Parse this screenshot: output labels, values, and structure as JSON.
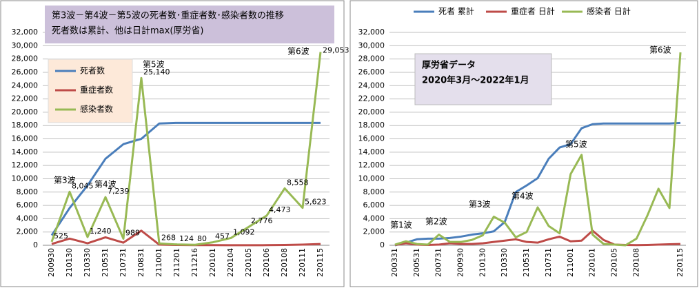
{
  "chart_data": [
    {
      "type": "line",
      "title": [
        "第3波－第4波－第5波の死者数･重症者数･感染者数の推移",
        "死者数は累計、他は日計max(厚労省)"
      ],
      "categories": [
        "200930",
        "210130",
        "210330",
        "210531",
        "210731",
        "210831",
        "211001",
        "211201",
        "211216",
        "220101",
        "220104",
        "220105",
        "220106",
        "220108",
        "220111",
        "220115"
      ],
      "series": [
        {
          "name": "死者数",
          "color": "#4a7ebb",
          "values": [
            1500,
            5600,
            9000,
            13000,
            15200,
            16000,
            18300,
            18400,
            18400,
            18400,
            18400,
            18400,
            18400,
            18400,
            18400,
            18400
          ]
        },
        {
          "name": "重症者数",
          "color": "#be4b48",
          "values": [
            200,
            1000,
            300,
            1200,
            400,
            2200,
            100,
            50,
            30,
            20,
            10,
            10,
            20,
            50,
            100,
            200
          ]
        },
        {
          "name": "感染者数",
          "color": "#98b954",
          "values": [
            525,
            8045,
            1240,
            7239,
            989,
            25140,
            268,
            124,
            80,
            457,
            1092,
            2776,
            4473,
            8558,
            5623,
            29053
          ],
          "value_labels": [
            "525",
            "8,045",
            "1,240",
            "7,239",
            "989",
            "25,140",
            "268",
            "124",
            "80",
            "457",
            "1,092",
            "2,776",
            "4,473",
            "8,558",
            "5,623",
            "29,053"
          ]
        }
      ],
      "annotations": [
        "第3波",
        "第4波",
        "第5波",
        "第6波"
      ],
      "ylim": [
        0,
        32000
      ],
      "yticks": [
        0,
        {
          "value": 2000,
          "label": "2,000"
        },
        {
          "value": 4000,
          "label": "4,000"
        },
        {
          "value": 6000,
          "label": "6,000"
        },
        {
          "value": 8000,
          "label": "8,000"
        },
        {
          "value": 10000,
          "label": "10,000"
        },
        {
          "value": 12000,
          "label": "12,000"
        },
        {
          "value": 14000,
          "label": "14,000"
        },
        {
          "value": 16000,
          "label": "16,000"
        },
        {
          "value": 18000,
          "label": "18,000"
        },
        {
          "value": 20000,
          "label": "20,000"
        },
        {
          "value": 22000,
          "label": "22,000"
        },
        {
          "value": 24000,
          "label": "24,000"
        },
        {
          "value": 26000,
          "label": "26,000"
        },
        {
          "value": 28000,
          "label": "28,000"
        },
        {
          "value": 30000,
          "label": "30,000"
        },
        {
          "value": 32000,
          "label": "32,000"
        }
      ],
      "grid": true,
      "legend": "upper left"
    },
    {
      "type": "line",
      "categories": [
        "200331",
        null,
        "200531",
        null,
        "200731",
        null,
        "200930",
        null,
        "210130",
        null,
        "210330",
        null,
        "210531",
        null,
        "210731",
        null,
        "211001",
        null,
        "220101",
        null,
        "220105",
        null,
        "220108",
        null,
        null,
        null,
        "220115"
      ],
      "series": [
        {
          "name": "死者 累計",
          "color": "#4a7ebb",
          "values": [
            0,
            400,
            900,
            1000,
            1000,
            1100,
            1300,
            1600,
            1800,
            2100,
            3500,
            8000,
            9000,
            10100,
            13000,
            14700,
            15200,
            17600,
            18200,
            18300,
            18300,
            18300,
            18300,
            18300,
            18300,
            18300,
            18400
          ]
        },
        {
          "name": "重症者 日計",
          "color": "#be4b48",
          "values": [
            50,
            300,
            100,
            50,
            100,
            300,
            200,
            200,
            300,
            500,
            700,
            900,
            500,
            400,
            900,
            1300,
            600,
            700,
            2200,
            800,
            100,
            50,
            30,
            50,
            100,
            150,
            200
          ]
        },
        {
          "name": "感染者 日計",
          "color": "#98b954",
          "values": [
            100,
            600,
            200,
            100,
            1600,
            500,
            500,
            800,
            1500,
            4300,
            3400,
            1200,
            2000,
            5700,
            2900,
            1800,
            10700,
            13600,
            1600,
            200,
            100,
            0,
            1000,
            4500,
            8500,
            5600,
            29000
          ]
        }
      ],
      "note": [
        "厚労省データ",
        "2020年3月～2022年1月"
      ],
      "annotations": [
        "第1波",
        "第2波",
        "第3波",
        "第4波",
        "第5波",
        "第6波"
      ],
      "ylim": [
        0,
        32000
      ],
      "yticks": [
        0,
        {
          "value": 2000,
          "label": "2,000"
        },
        {
          "value": 4000,
          "label": "4,000"
        },
        {
          "value": 6000,
          "label": "6,000"
        },
        {
          "value": 8000,
          "label": "8,000"
        },
        {
          "value": 10000,
          "label": "10,000"
        },
        {
          "value": 12000,
          "label": "12,000"
        },
        {
          "value": 14000,
          "label": "14,000"
        },
        {
          "value": 16000,
          "label": "16,000"
        },
        {
          "value": 18000,
          "label": "18,000"
        },
        {
          "value": 20000,
          "label": "20,000"
        },
        {
          "value": 22000,
          "label": "22,000"
        },
        {
          "value": 24000,
          "label": "24,000"
        },
        {
          "value": 26000,
          "label": "26,000"
        },
        {
          "value": 28000,
          "label": "28,000"
        },
        {
          "value": 30000,
          "label": "30,000"
        },
        {
          "value": 32000,
          "label": "32,000"
        }
      ],
      "grid": true,
      "legend": "top"
    }
  ]
}
